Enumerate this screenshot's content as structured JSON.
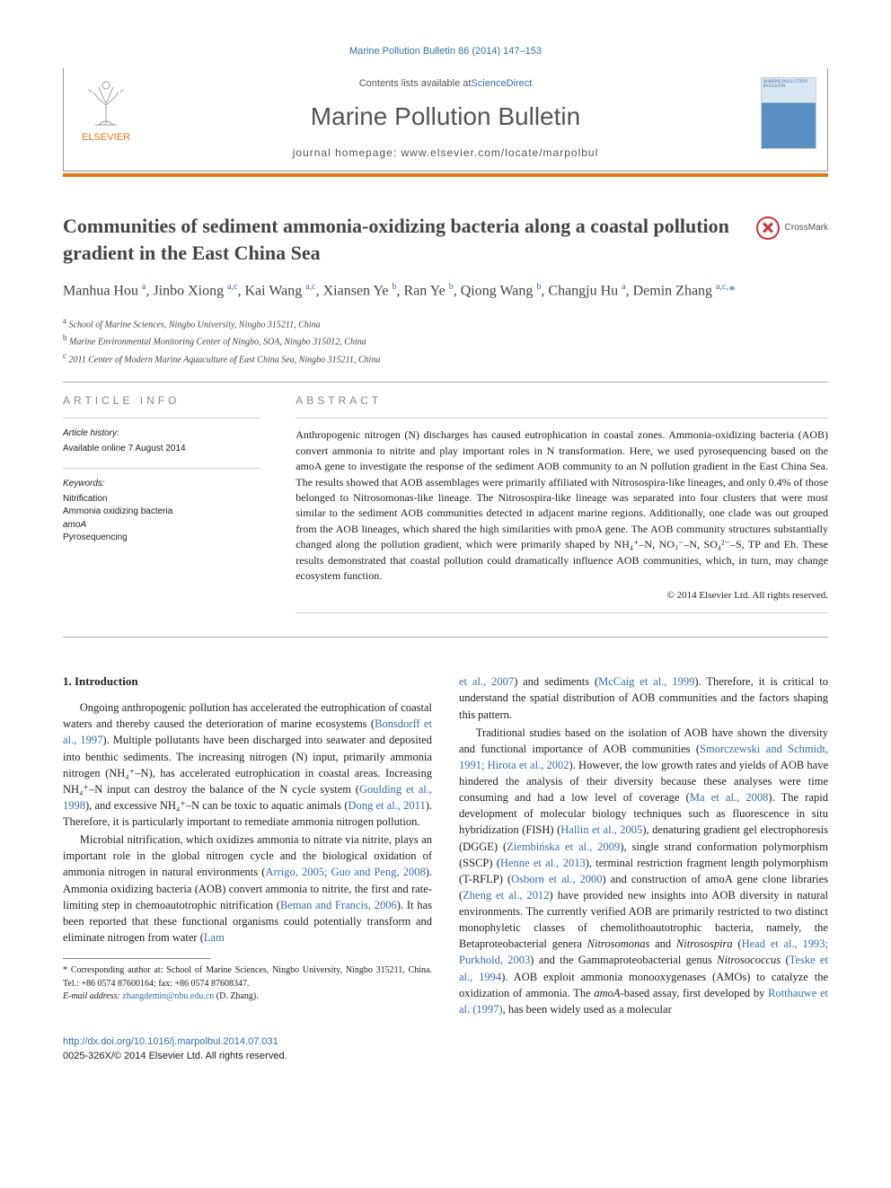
{
  "top_citation": "Marine Pollution Bulletin 86 (2014) 147–153",
  "header": {
    "contents_prefix": "Contents lists available at ",
    "contents_link": "ScienceDirect",
    "journal_title": "Marine Pollution Bulletin",
    "homepage_label": "journal homepage: ",
    "homepage_url": "www.elsevier.com/locate/marpolbul",
    "publisher": "ELSEVIER",
    "cover_title": "MARINE POLLUTION BULLETIN"
  },
  "crossmark": "CrossMark",
  "article": {
    "title": "Communities of sediment ammonia-oxidizing bacteria along a coastal pollution gradient in the East China Sea",
    "authors_html": "Manhua Hou <sup>a</sup>, Jinbo Xiong <sup>a,c</sup>, Kai Wang <sup>a,c</sup>, Xiansen Ye <sup>b</sup>, Ran Ye <sup>b</sup>, Qiong Wang <sup>b</sup>, Changju Hu <sup>a</sup>, Demin Zhang <sup>a,c,</sup><span class='star'>*</span>",
    "affiliations": {
      "a": "School of Marine Sciences, Ningbo University, Ningbo 315211, China",
      "b": "Marine Environmental Monitoring Center of Ningbo, SOA, Ningbo 315012, China",
      "c": "2011 Center of Modern Marine Aquaculture of East China Sea, Ningbo 315211, China"
    }
  },
  "info": {
    "hdr": "article info",
    "history_label": "Article history:",
    "history_line": "Available online 7 August 2014",
    "keywords_label": "Keywords:",
    "keywords": [
      "Nitrification",
      "Ammonia oxidizing bacteria",
      "amoA",
      "Pyrosequencing"
    ]
  },
  "abstract": {
    "hdr": "abstract",
    "text": "Anthropogenic nitrogen (N) discharges has caused eutrophication in coastal zones. Ammonia-oxidizing bacteria (AOB) convert ammonia to nitrite and play important roles in N transformation. Here, we used pyrosequencing based on the amoA gene to investigate the response of the sediment AOB community to an N pollution gradient in the East China Sea. The results showed that AOB assemblages were primarily affiliated with Nitrosospira-like lineages, and only 0.4% of those belonged to Nitrosomonas-like lineage. The Nitrosospira-like lineage was separated into four clusters that were most similar to the sediment AOB communities detected in adjacent marine regions. Additionally, one clade was out grouped from the AOB lineages, which shared the high similarities with pmoA gene. The AOB community structures substantially changed along the pollution gradient, which were primarily shaped by NH₄⁺–N, NO₃⁻–N, SO₄²⁻–S, TP and Eh. These results demonstrated that coastal pollution could dramatically influence AOB communities, which, in turn, may change ecosystem function.",
    "credit": "© 2014 Elsevier Ltd. All rights reserved."
  },
  "body": {
    "section1_title": "1. Introduction",
    "p1": "Ongoing anthropogenic pollution has accelerated the eutrophication of coastal waters and thereby caused the deterioration of marine ecosystems (<span class='link'>Bonsdorff et al., 1997</span>). Multiple pollutants have been discharged into seawater and deposited into benthic sediments. The increasing nitrogen (N) input, primarily ammonia nitrogen (NH₄⁺–N), has accelerated eutrophication in coastal areas. Increasing NH₄⁺–N input can destroy the balance of the N cycle system (<span class='link'>Goulding et al., 1998</span>), and excessive NH₄⁺–N can be toxic to aquatic animals (<span class='link'>Dong et al., 2011</span>). Therefore, it is particularly important to remediate ammonia nitrogen pollution.",
    "p2": "Microbial nitrification, which oxidizes ammonia to nitrate via nitrite, plays an important role in the global nitrogen cycle and the biological oxidation of ammonia nitrogen in natural environments (<span class='link'>Arrigo, 2005; Guo and Peng, 2008</span>). Ammonia oxidizing bacteria (AOB) convert ammonia to nitrite, the first and rate-limiting step in chemoautotrophic nitrification (<span class='link'>Beman and Francis, 2006</span>). It has been reported that these functional organisms could potentially transform and eliminate nitrogen from water (<span class='link'>Lam</span>",
    "p3_cont": "<span class='link'>et al., 2007</span>) and sediments (<span class='link'>McCaig et al., 1999</span>). Therefore, it is critical to understand the spatial distribution of AOB communities and the factors shaping this pattern.",
    "p4": "Traditional studies based on the isolation of AOB have shown the diversity and functional importance of AOB communities (<span class='link'>Smorczewski and Schmidt, 1991; Hirota et al., 2002</span>). However, the low growth rates and yields of AOB have hindered the analysis of their diversity because these analyses were time consuming and had a low level of coverage (<span class='link'>Ma et al., 2008</span>). The rapid development of molecular biology techniques such as fluorescence in situ hybridization (FISH) (<span class='link'>Hallin et al., 2005</span>), denaturing gradient gel electrophoresis (DGGE) (<span class='link'>Ziembińska et al., 2009</span>), single strand conformation polymorphism (SSCP) (<span class='link'>Henne et al., 2013</span>), terminal restriction fragment length polymorphism (T-RFLP) (<span class='link'>Osborn et al., 2000</span>) and construction of amoA gene clone libraries (<span class='link'>Zheng et al., 2012</span>) have provided new insights into AOB diversity in natural environments. The currently verified AOB are primarily restricted to two distinct monophyletic classes of chemolithoautotrophic bacteria, namely, the Betaproteobacterial genera <i>Nitrosomonas</i> and <i>Nitrosospira</i> (<span class='link'>Head et al., 1993; Purkhold, 2003</span>) and the Gammaproteobacterial genus <i>Nitrosococcus</i> (<span class='link'>Teske et al., 1994</span>). AOB exploit ammonia monooxygenases (AMOs) to catalyze the oxidization of ammonia. The <i>amoA</i>-based assay, first developed by <span class='link'>Rotthauwe et al. (1997)</span>, has been widely used as a molecular"
  },
  "footnotes": {
    "corr": "* Corresponding author at: School of Marine Sciences, Ningbo University, Ningbo 315211, China. Tel.: +86 0574 87600164; fax: +86 0574 87608347.",
    "email_label": "E-mail address:",
    "email": "zhangdemin@nbu.edu.cn",
    "email_after": " (D. Zhang)."
  },
  "footer": {
    "doi": "http://dx.doi.org/10.1016/j.marpolbul.2014.07.031",
    "issn": "0025-326X/© 2014 Elsevier Ltd. All rights reserved."
  },
  "colors": {
    "orange": "#e67817",
    "link": "#3a6ea5"
  }
}
